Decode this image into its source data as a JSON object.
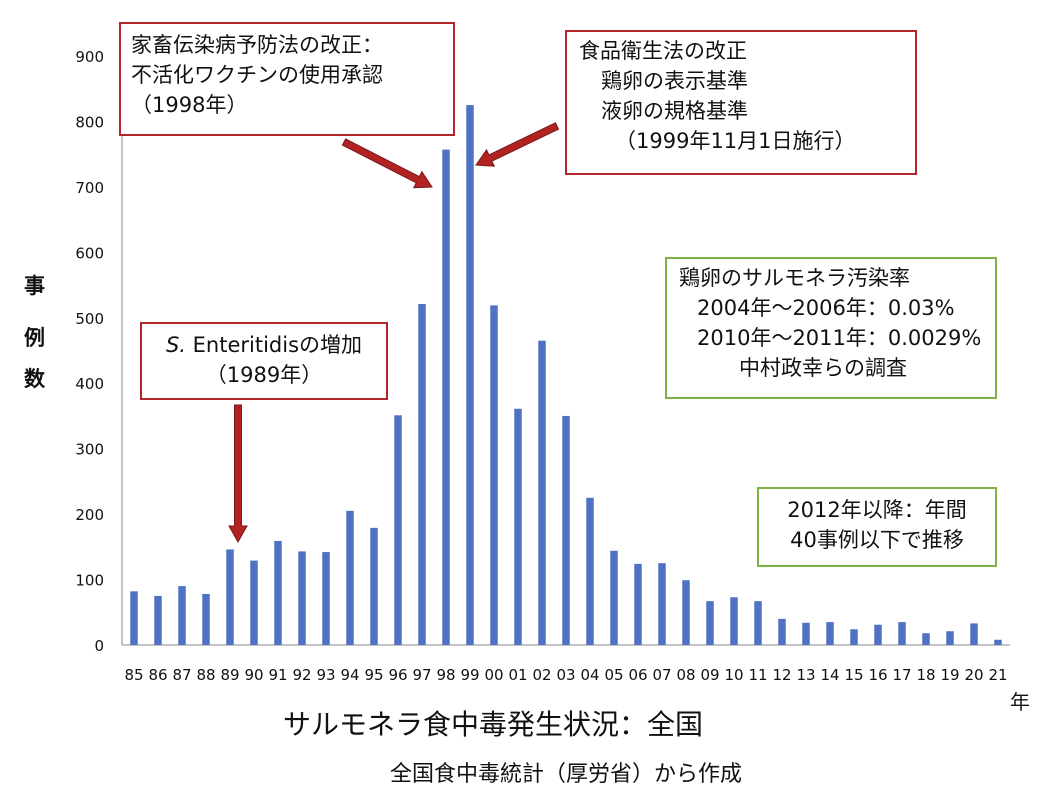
{
  "chart_data": {
    "type": "bar",
    "title": "サルモネラ食中毒発生状況：全国",
    "subtitle": "全国食中毒統計（厚労省）から作成",
    "ylabel": [
      "事",
      "例",
      "数"
    ],
    "xlabel": "年",
    "ylim": [
      0,
      900
    ],
    "yticks": [
      "0",
      "100",
      "200",
      "300",
      "400",
      "500",
      "600",
      "700",
      "800",
      "900"
    ],
    "categories": [
      "85",
      "86",
      "87",
      "88",
      "89",
      "90",
      "91",
      "92",
      "93",
      "94",
      "95",
      "96",
      "97",
      "98",
      "99",
      "00",
      "01",
      "02",
      "03",
      "04",
      "05",
      "06",
      "07",
      "08",
      "09",
      "10",
      "11",
      "12",
      "13",
      "14",
      "15",
      "16",
      "17",
      "18",
      "19",
      "20",
      "21"
    ],
    "values": [
      82,
      75,
      90,
      78,
      146,
      129,
      159,
      143,
      142,
      205,
      179,
      351,
      521,
      757,
      825,
      519,
      361,
      465,
      350,
      225,
      144,
      124,
      125,
      99,
      67,
      73,
      67,
      40,
      34,
      35,
      24,
      31,
      35,
      18,
      21,
      33,
      8
    ],
    "color": "#4f72c4",
    "grid": false
  },
  "annotations": {
    "box1": {
      "lines": [
        "家畜伝染病予防法の改正：",
        "不活化ワクチンの使用承認",
        "（1998年）"
      ]
    },
    "box2": {
      "lines": [
        "食品衛生法の改正",
        "鶏卵の表示基準",
        "液卵の規格基準",
        "（1999年11月1日施行）"
      ]
    },
    "box3": {
      "italic": "S.",
      "rest": " Enteritidisの増加",
      "line2": "（1989年）"
    },
    "box4": {
      "lines": [
        "鶏卵のサルモネラ汚染率",
        "2004年～2006年：0.03%",
        "2010年～2011年：0.0029%",
        "中村政幸らの調査"
      ]
    },
    "box5": {
      "lines": [
        "2012年以降：年間",
        "40事例以下で推移"
      ]
    }
  },
  "colors": {
    "bar": "#4f72c4",
    "red_border": "#b5262a",
    "green_border": "#7cb342",
    "arrow": "#b22222"
  }
}
